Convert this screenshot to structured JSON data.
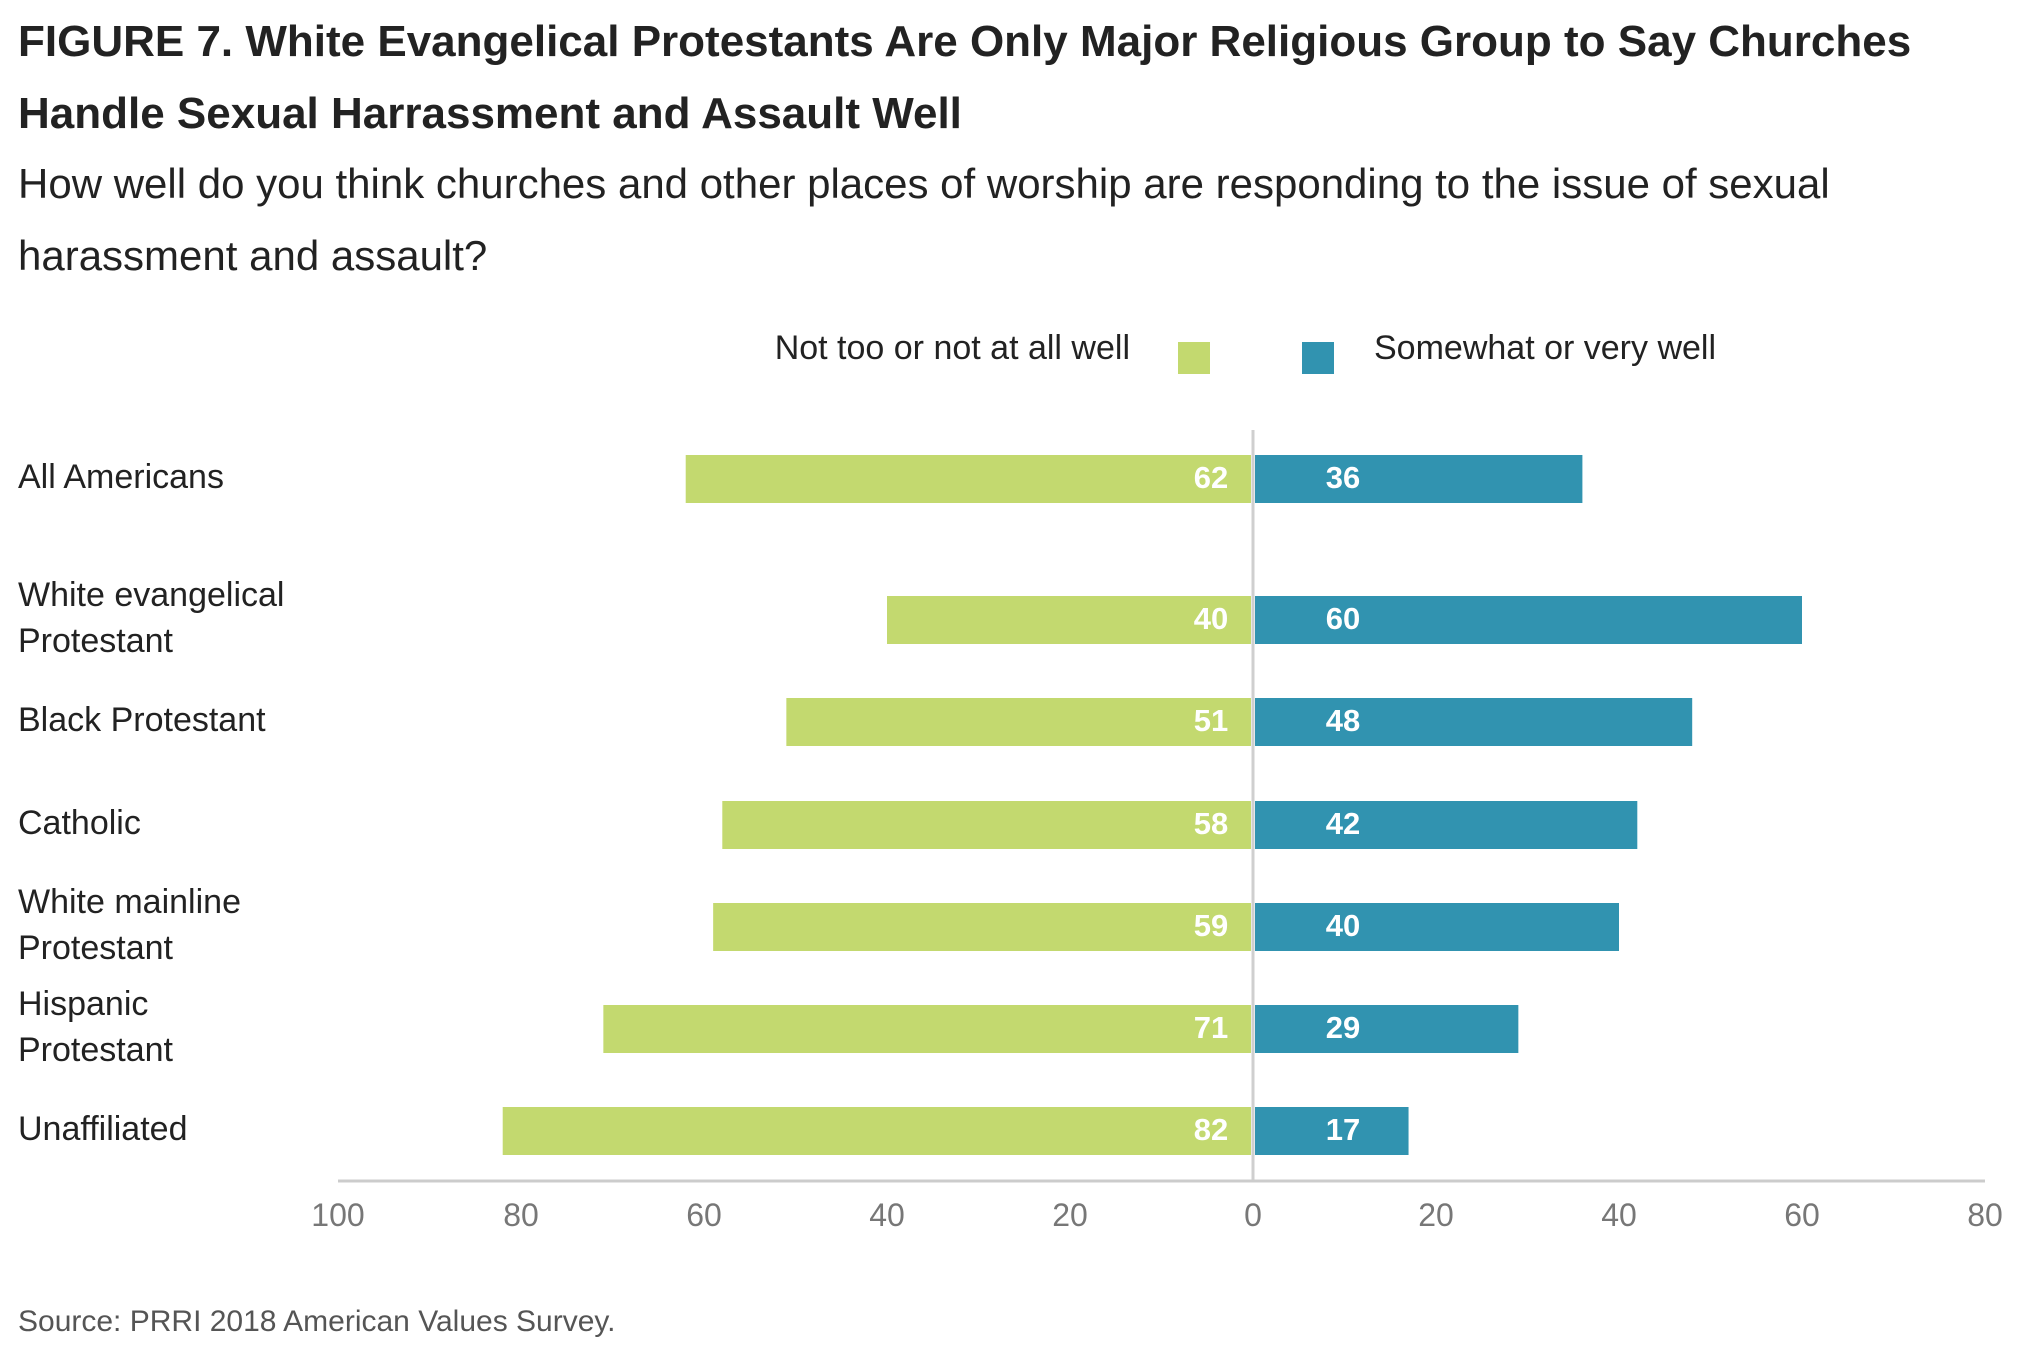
{
  "title": "FIGURE 7. White Evangelical Protestants Are Only Major Religious Group to Say Churches Handle Sexual Harrassment and Assault Well",
  "subtitle": "How well do you think churches and other places of worship are responding to the issue of sexual harassment and assault?",
  "source": "Source: PRRI 2018 American Values Survey.",
  "chart_data": {
    "type": "bar",
    "orientation": "horizontal-diverging",
    "categories": [
      [
        "All Americans"
      ],
      [
        "White evangelical",
        "Protestant"
      ],
      [
        "Black Protestant"
      ],
      [
        "Catholic"
      ],
      [
        "White mainline",
        "Protestant"
      ],
      [
        "Hispanic",
        "Protestant"
      ],
      [
        "Unaffiliated"
      ]
    ],
    "series": [
      {
        "name": "Not too or not at all well",
        "direction": "left",
        "color": "#c3d96f",
        "values": [
          62,
          40,
          51,
          58,
          59,
          71,
          82
        ]
      },
      {
        "name": "Somewhat or very well",
        "direction": "right",
        "color": "#3193b0",
        "values": [
          36,
          60,
          48,
          42,
          40,
          29,
          17
        ]
      }
    ],
    "xlim": [
      -100,
      80
    ],
    "xticks": [
      "100",
      "80",
      "60",
      "40",
      "20",
      "0",
      "20",
      "40",
      "60",
      "80"
    ],
    "legend_position": "top-center",
    "grid": false,
    "axis_color": "#cccccc"
  }
}
